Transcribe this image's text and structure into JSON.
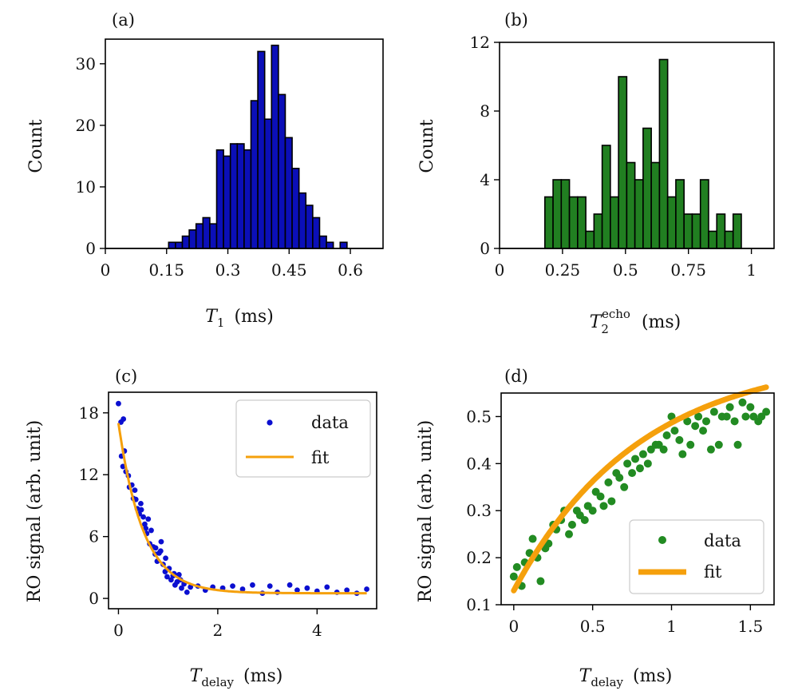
{
  "chart_data": [
    {
      "type": "bar",
      "panel": "(a)",
      "ylabel": "Count",
      "xlabel_main": "T",
      "xlabel_sub": "1",
      "xlabel_unit": "(ms)",
      "xlim": [
        0,
        0.68
      ],
      "ylim": [
        0,
        34
      ],
      "xticks": [
        "0",
        "0.15",
        "0.3",
        "0.45",
        "0.6"
      ],
      "xtick_values": [
        0,
        0.15,
        0.3,
        0.45,
        0.6
      ],
      "yticks": [
        "0",
        "10",
        "20",
        "30"
      ],
      "ytick_values": [
        0,
        10,
        20,
        30
      ],
      "bin_start": 0.155,
      "bin_width": 0.0168,
      "values": [
        1,
        1,
        2,
        3,
        4,
        5,
        4,
        16,
        15,
        17,
        17,
        16,
        24,
        32,
        21,
        33,
        25,
        18,
        13,
        9,
        7,
        5,
        2,
        1,
        0,
        1
      ],
      "color": "#0b0fb8"
    },
    {
      "type": "bar",
      "panel": "(b)",
      "ylabel": "Count",
      "xlabel_main": "T",
      "xlabel_sub": "2",
      "xlabel_sup": "echo",
      "xlabel_unit": "(ms)",
      "xlim": [
        0,
        1.09
      ],
      "ylim": [
        0,
        12
      ],
      "xticks": [
        "0",
        "0.25",
        "0.5",
        "0.75",
        "1"
      ],
      "xtick_values": [
        0,
        0.25,
        0.5,
        0.75,
        1
      ],
      "yticks": [
        "0",
        "4",
        "8",
        "12"
      ],
      "ytick_values": [
        0,
        4,
        8,
        12
      ],
      "bin_start": 0.18,
      "bin_width": 0.0325,
      "values": [
        3,
        4,
        4,
        3,
        3,
        1,
        2,
        6,
        3,
        10,
        5,
        4,
        7,
        5,
        11,
        3,
        4,
        2,
        2,
        4,
        1,
        2,
        1,
        2
      ],
      "color": "#217f21"
    },
    {
      "type": "scatter",
      "panel": "(c)",
      "ylabel": "RO signal (arb. unit)",
      "xlabel_main": "T",
      "xlabel_sub": "delay",
      "xlabel_unit": "(ms)",
      "xlim": [
        -0.2,
        5.2
      ],
      "ylim": [
        -1,
        20
      ],
      "xticks": [
        "0",
        "2",
        "4"
      ],
      "xtick_values": [
        0,
        2,
        4
      ],
      "yticks": [
        "0",
        "6",
        "12",
        "18"
      ],
      "ytick_values": [
        0,
        6,
        12,
        18
      ],
      "legend": [
        "data",
        "fit"
      ],
      "legend_position": "top-right",
      "data_color": "#0b0fd0",
      "fit_color": "#f5a00c",
      "fit": {
        "a": 16.5,
        "tau": 0.5,
        "c": 0.5
      },
      "series": [
        {
          "name": "data",
          "x": [
            0.0,
            0.05,
            0.1,
            0.06,
            0.09,
            0.12,
            0.15,
            0.2,
            0.22,
            0.27,
            0.3,
            0.35,
            0.38,
            0.42,
            0.46,
            0.5,
            0.53,
            0.57,
            0.6,
            0.63,
            0.66,
            0.7,
            0.74,
            0.78,
            0.82,
            0.86,
            0.9,
            0.94,
            0.98,
            1.02,
            1.06,
            1.1,
            1.14,
            1.18,
            1.22,
            1.27,
            1.32,
            1.38,
            1.45,
            1.6,
            1.75,
            1.9,
            2.1,
            2.3,
            2.5,
            2.7,
            2.9,
            3.05,
            3.2,
            3.45,
            3.6,
            3.8,
            4.0,
            4.2,
            4.4,
            4.6,
            4.8,
            5.0,
            0.33,
            0.55,
            0.75,
            0.95,
            1.12,
            1.25,
            0.45,
            0.85
          ],
          "y": [
            18.9,
            17.1,
            17.4,
            13.8,
            12.8,
            14.3,
            12.3,
            11.9,
            10.8,
            11.0,
            9.7,
            9.6,
            8.7,
            8.2,
            8.6,
            7.9,
            7.2,
            6.3,
            7.7,
            5.3,
            6.6,
            5.0,
            4.3,
            3.6,
            4.4,
            5.5,
            3.3,
            2.6,
            2.1,
            2.9,
            1.8,
            2.2,
            1.3,
            1.6,
            2.3,
            1.0,
            1.4,
            0.6,
            1.1,
            1.2,
            0.8,
            1.1,
            1.0,
            1.2,
            0.9,
            1.3,
            0.5,
            1.2,
            0.6,
            1.3,
            0.8,
            1.0,
            0.7,
            1.1,
            0.6,
            0.8,
            0.5,
            0.9,
            10.5,
            6.8,
            4.9,
            3.9,
            2.4,
            1.8,
            9.2,
            4.6
          ]
        }
      ]
    },
    {
      "type": "scatter",
      "panel": "(d)",
      "ylabel": "RO signal (arb. unit)",
      "xlabel_main": "T",
      "xlabel_sub": "delay",
      "xlabel_unit": "(ms)",
      "xlim": [
        -0.08,
        1.65
      ],
      "ylim": [
        0.1,
        0.55
      ],
      "xticks": [
        "0",
        "0.5",
        "1",
        "1.5"
      ],
      "xtick_values": [
        0,
        0.5,
        1,
        1.5
      ],
      "yticks": [
        "0.1",
        "0.2",
        "0.3",
        "0.4",
        "0.5"
      ],
      "ytick_values": [
        0.1,
        0.2,
        0.3,
        0.4,
        0.5
      ],
      "legend": [
        "data",
        "fit"
      ],
      "legend_position": "bottom-right",
      "data_color": "#228b22",
      "fit_color": "#f5a00c",
      "fit": {
        "a": 0.5,
        "tau": 0.8,
        "c": 0.13
      },
      "series": [
        {
          "name": "data",
          "x": [
            0.0,
            0.02,
            0.05,
            0.07,
            0.1,
            0.12,
            0.15,
            0.17,
            0.2,
            0.22,
            0.25,
            0.27,
            0.3,
            0.32,
            0.35,
            0.37,
            0.4,
            0.42,
            0.45,
            0.47,
            0.5,
            0.52,
            0.55,
            0.57,
            0.6,
            0.62,
            0.65,
            0.67,
            0.7,
            0.72,
            0.75,
            0.77,
            0.8,
            0.82,
            0.85,
            0.87,
            0.9,
            0.92,
            0.95,
            0.97,
            1.0,
            1.02,
            1.05,
            1.07,
            1.1,
            1.12,
            1.15,
            1.17,
            1.2,
            1.22,
            1.25,
            1.27,
            1.3,
            1.32,
            1.35,
            1.37,
            1.4,
            1.42,
            1.45,
            1.47,
            1.5,
            1.52,
            1.55,
            1.57,
            1.6
          ],
          "y": [
            0.16,
            0.18,
            0.14,
            0.19,
            0.21,
            0.24,
            0.2,
            0.15,
            0.22,
            0.23,
            0.27,
            0.26,
            0.28,
            0.3,
            0.25,
            0.27,
            0.3,
            0.29,
            0.28,
            0.31,
            0.3,
            0.34,
            0.33,
            0.31,
            0.36,
            0.32,
            0.38,
            0.37,
            0.35,
            0.4,
            0.38,
            0.41,
            0.39,
            0.42,
            0.4,
            0.43,
            0.44,
            0.44,
            0.43,
            0.46,
            0.5,
            0.47,
            0.45,
            0.42,
            0.49,
            0.44,
            0.48,
            0.5,
            0.47,
            0.49,
            0.43,
            0.51,
            0.44,
            0.5,
            0.5,
            0.52,
            0.49,
            0.44,
            0.53,
            0.5,
            0.52,
            0.5,
            0.49,
            0.5,
            0.51
          ]
        }
      ]
    }
  ]
}
